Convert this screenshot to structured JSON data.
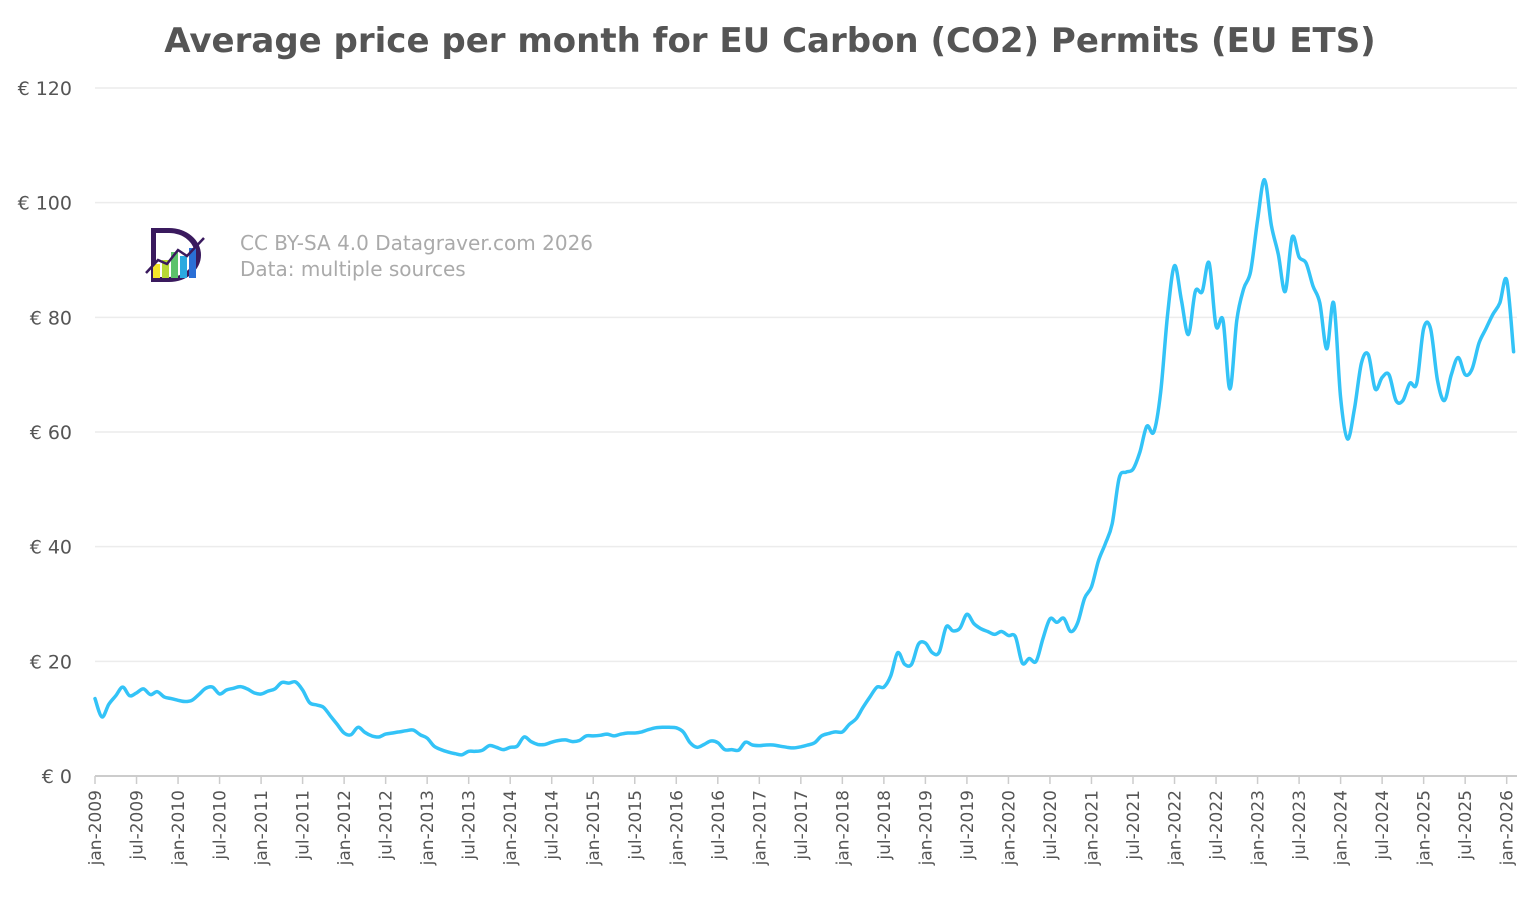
{
  "chart_data": {
    "type": "line",
    "title": "Average price per month for EU Carbon (CO2) Permits (EU ETS)",
    "xlabel": "",
    "ylabel": "",
    "ylim": [
      0,
      120
    ],
    "y_ticks": [
      "€ 0",
      "€ 20",
      "€ 40",
      "€ 60",
      "€ 80",
      "€ 100",
      "€ 120"
    ],
    "y_tick_values": [
      0,
      20,
      40,
      60,
      80,
      100,
      120
    ],
    "x_ticks": [
      "jan-2009",
      "jul-2009",
      "jan-2010",
      "jul-2010",
      "jan-2011",
      "jul-2011",
      "jan-2012",
      "jul-2012",
      "jan-2013",
      "jul-2013",
      "jan-2014",
      "jul-2014",
      "jan-2015",
      "jul-2015",
      "jan-2016",
      "jul-2016",
      "jan-2017",
      "jul-2017",
      "jan-2018",
      "jul-2018",
      "jan-2019",
      "jul-2019",
      "jan-2020",
      "jul-2020",
      "jan-2021",
      "jul-2021",
      "jan-2022",
      "jul-2022",
      "jan-2023",
      "jul-2023",
      "jan-2024",
      "jul-2024",
      "jan-2025",
      "jul-2025",
      "jan-2026"
    ],
    "x_start": "jan-2009",
    "x_end": "feb-2026",
    "grid": true,
    "line_color": "#33c3f7",
    "series": [
      {
        "values": [
          13.5,
          10.3,
          12.5,
          14,
          15.5,
          14,
          14.5,
          15.2,
          14.2,
          14.7,
          13.8,
          13.5,
          13.2,
          13,
          13.2,
          14.2,
          15.3,
          15.5,
          14.3,
          15,
          15.3,
          15.6,
          15.2,
          14.5,
          14.3,
          14.8,
          15.2,
          16.3,
          16.2,
          16.4,
          15,
          12.8,
          12.4,
          12,
          10.5,
          9,
          7.5,
          7.2,
          8.5,
          7.6,
          7,
          6.8,
          7.3,
          7.5,
          7.7,
          7.9,
          8,
          7.2,
          6.6,
          5.2,
          4.6,
          4.2,
          3.9,
          3.7,
          4.3,
          4.3,
          4.5,
          5.3,
          5,
          4.6,
          5,
          5.2,
          6.8,
          6,
          5.5,
          5.5,
          5.9,
          6.2,
          6.3,
          6,
          6.2,
          7,
          7,
          7.1,
          7.3,
          7,
          7.3,
          7.5,
          7.5,
          7.7,
          8.1,
          8.4,
          8.5,
          8.5,
          8.4,
          7.7,
          5.8,
          5,
          5.5,
          6.1,
          5.8,
          4.6,
          4.6,
          4.5,
          5.9,
          5.4,
          5.3,
          5.4,
          5.4,
          5.2,
          5,
          4.9,
          5.1,
          5.4,
          5.8,
          7,
          7.4,
          7.7,
          7.7,
          9,
          10,
          12,
          13.8,
          15.5,
          15.5,
          17.5,
          21.5,
          19.5,
          19.5,
          23,
          23.2,
          21.5,
          21.6,
          26,
          25.3,
          25.8,
          28.2,
          26.6,
          25.7,
          25.2,
          24.7,
          25.2,
          24.5,
          24.3,
          19.7,
          20.5,
          20,
          24,
          27.4,
          26.8,
          27.5,
          25.2,
          26.7,
          31,
          33,
          37.5,
          40.5,
          44,
          52,
          53,
          53.5,
          56.5,
          61,
          60,
          67,
          80.5,
          89,
          83,
          77,
          84.5,
          84.5,
          89.5,
          78.5,
          79.5,
          67.5,
          79.5,
          85,
          88,
          97,
          104,
          96,
          91,
          84.5,
          94,
          90.5,
          89.5,
          85.5,
          82.5,
          74.5,
          82.5,
          66,
          58.8,
          64,
          72,
          73.5,
          67.5,
          69.5,
          70,
          65.5,
          65.5,
          68.5,
          68.5,
          78,
          78,
          69,
          65.5,
          70,
          73,
          70,
          71,
          75.5,
          78,
          80.5,
          82.5,
          86.5,
          74
        ]
      }
    ]
  },
  "watermark": {
    "line1": "CC BY-SA 4.0 Datagraver.com 2026",
    "line2": "Data: multiple sources",
    "logo_icon": "datagraver-logo"
  }
}
